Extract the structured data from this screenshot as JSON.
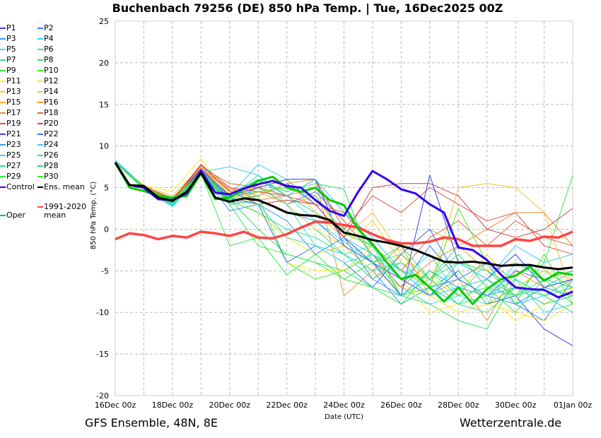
{
  "header": {
    "title": "Buchenbach 79256 (DE)  850 hPa Temp. | Tue, 16Dec2025 00Z"
  },
  "footer": {
    "left": "GFS Ensemble, 48N, 8E",
    "right": "Wetterzentrale.de"
  },
  "chart_data": {
    "type": "line",
    "title": "Buchenbach 79256 (DE)  850 hPa Temp. | Tue, 16Dec2025 00Z",
    "xlabel": "Date (UTC)",
    "ylabel": "850 hPa Temp. (°C)",
    "ylim": [
      -20,
      25
    ],
    "xlim_days": [
      0,
      16
    ],
    "yticks": [
      "-20",
      "-15",
      "-10",
      "-5",
      "0",
      "5",
      "10",
      "15",
      "20",
      "25"
    ],
    "ytick_values": [
      -20,
      -15,
      -10,
      -5,
      0,
      5,
      10,
      15,
      20,
      25
    ],
    "xticks": [
      "16Dec 00z",
      "18Dec 00z",
      "20Dec 00z",
      "22Dec 00z",
      "24Dec 00z",
      "26Dec 00z",
      "28Dec 00z",
      "30Dec 00z",
      "01Jan 00z"
    ],
    "xtick_days": [
      0,
      2,
      4,
      6,
      8,
      10,
      12,
      14,
      16
    ],
    "grid": true,
    "legend_placement": "left-outside",
    "main_step_days": 0.5,
    "member_step_days": 1,
    "members": [
      {
        "name": "P1",
        "color": "#3344ee",
        "values": [
          8,
          5,
          3.4,
          7,
          3.5,
          4,
          5.5,
          3,
          -1,
          -4,
          -6,
          -8,
          -5,
          -9,
          -8,
          -12,
          -14
        ]
      },
      {
        "name": "P2",
        "color": "#3377ff",
        "values": [
          8,
          5.2,
          3.5,
          7.2,
          4,
          4.5,
          3,
          4.5,
          1,
          -3,
          -7,
          -2,
          -6,
          -4,
          -9,
          -11,
          -6
        ]
      },
      {
        "name": "P3",
        "color": "#3399ff",
        "values": [
          8,
          5,
          3.2,
          6.8,
          3,
          3.5,
          2,
          1,
          -2,
          -5,
          -9,
          -7,
          -6,
          -8,
          -7,
          -9,
          -8
        ]
      },
      {
        "name": "P4",
        "color": "#33ccff",
        "values": [
          8.3,
          5.2,
          3.3,
          7,
          4,
          7.8,
          6,
          3,
          -1,
          -3,
          -5,
          -8,
          -7,
          -6,
          -9,
          -8,
          -10
        ]
      },
      {
        "name": "P5",
        "color": "#33ddee",
        "values": [
          8,
          5,
          2.8,
          6.7,
          3.2,
          5,
          4,
          1,
          -1.5,
          -4,
          -7,
          -9,
          -8,
          -4,
          -6,
          -10,
          -9
        ]
      },
      {
        "name": "P6",
        "color": "#33ddaa",
        "values": [
          8,
          4.8,
          2.7,
          6.5,
          3.5,
          5,
          3,
          0,
          -3,
          -6,
          -4,
          -7,
          -9,
          -6,
          -8,
          -7,
          -5
        ]
      },
      {
        "name": "P7",
        "color": "#33dd88",
        "values": [
          8,
          5.1,
          3,
          6.9,
          4.2,
          6,
          4,
          2,
          0,
          -2,
          -5,
          -6,
          -2,
          -5,
          -7,
          -8,
          -6
        ]
      },
      {
        "name": "P8",
        "color": "#33dd66",
        "values": [
          8.1,
          5,
          3.4,
          7,
          3.6,
          0,
          -3,
          -4,
          -5,
          -7,
          -8,
          -9,
          -11,
          -12,
          -6,
          -8,
          -7
        ]
      },
      {
        "name": "P9",
        "color": "#33ee44",
        "values": [
          8,
          4.9,
          3.2,
          6.6,
          3,
          -2,
          -3,
          -4,
          -6,
          -4,
          -3,
          -6,
          -4,
          -5,
          -8,
          -4,
          6.5
        ]
      },
      {
        "name": "P10",
        "color": "#44ee22",
        "values": [
          8,
          5,
          3.5,
          6.7,
          3.3,
          4,
          -4,
          -6,
          -5,
          -3,
          -8,
          -7,
          -5,
          -9,
          -7,
          -5,
          -7
        ]
      },
      {
        "name": "P11",
        "color": "#ffee22",
        "values": [
          8,
          5.3,
          4.5,
          8.5,
          4,
          3,
          -4,
          -5,
          -5,
          -2,
          -6,
          -10,
          -9,
          -8,
          -11,
          -9,
          -7
        ]
      },
      {
        "name": "P12",
        "color": "#ffdd22",
        "values": [
          8,
          5.1,
          3.6,
          7.1,
          4,
          2,
          -1,
          -3,
          -2,
          -5,
          -7,
          -8,
          -10,
          -9,
          -10,
          -11,
          -9
        ]
      },
      {
        "name": "P13",
        "color": "#ffcc33",
        "values": [
          8,
          5,
          3.5,
          7,
          3.8,
          4.5,
          3,
          0,
          -2,
          1,
          -4,
          -6,
          -8,
          -3,
          -7,
          -5,
          -6
        ]
      },
      {
        "name": "P14",
        "color": "#ffbb33",
        "values": [
          8,
          5.2,
          4,
          7.5,
          4.5,
          5,
          6,
          2,
          -1,
          2,
          -3,
          -7,
          5,
          5.5,
          5,
          2,
          -8
        ]
      },
      {
        "name": "P15",
        "color": "#ffaa33",
        "values": [
          8,
          5,
          3.6,
          7.3,
          4.3,
          5.2,
          3,
          4,
          -1,
          -6,
          -3,
          0,
          -2,
          -5,
          -4,
          -6,
          -5
        ]
      },
      {
        "name": "P16",
        "color": "#ee9933",
        "values": [
          8,
          5.1,
          3.8,
          7.1,
          4.8,
          4,
          5.5,
          6,
          -8,
          -5,
          -2,
          -8,
          -6,
          -11,
          -5,
          -7,
          -6
        ]
      },
      {
        "name": "P17",
        "color": "#ee8833",
        "values": [
          8,
          5,
          3.7,
          7.2,
          5,
          3.5,
          4,
          5,
          1,
          -3,
          -7,
          -4,
          -2,
          0,
          2,
          2,
          -2
        ]
      },
      {
        "name": "P18",
        "color": "#dd6644",
        "values": [
          8,
          5.2,
          3.6,
          7.4,
          5.5,
          5,
          4,
          3,
          2,
          -2,
          -5,
          -1,
          1,
          -2,
          1,
          -1,
          -2
        ]
      },
      {
        "name": "P19",
        "color": "#dd5544",
        "values": [
          8,
          5,
          3.5,
          7.8,
          5,
          4.5,
          4,
          6,
          0,
          4,
          2,
          5,
          3,
          1,
          2,
          -2,
          -3
        ]
      },
      {
        "name": "P20",
        "color": "#cc4444",
        "values": [
          8,
          5,
          3.4,
          7.7,
          4.6,
          3,
          3.5,
          3,
          -1,
          5,
          5.5,
          5.5,
          4,
          0,
          -1,
          0,
          2.5
        ]
      },
      {
        "name": "P21",
        "color": "#3344ee",
        "values": [
          8,
          5,
          3.3,
          7.2,
          4,
          5,
          6,
          6,
          -2,
          -4,
          -8,
          6.5,
          -4,
          -6,
          -3,
          -7,
          -6
        ]
      },
      {
        "name": "P22",
        "color": "#3377ff",
        "values": [
          8,
          5.1,
          3.4,
          7,
          3.8,
          3,
          -4,
          -2,
          -4,
          -7,
          -3,
          0,
          -6,
          -8,
          -5,
          -6,
          -7
        ]
      },
      {
        "name": "P23",
        "color": "#3399ff",
        "values": [
          8,
          5,
          3.3,
          6.8,
          2.2,
          3,
          1,
          -3,
          -1,
          -6,
          -8,
          -5,
          -7,
          -8,
          -9,
          -7,
          -8
        ]
      },
      {
        "name": "P24",
        "color": "#33ccff",
        "values": [
          8.2,
          5.1,
          3.2,
          6.9,
          7.5,
          6.5,
          4,
          6,
          2,
          -1,
          -5,
          -8,
          -4,
          -6,
          -2,
          -4,
          -3
        ]
      },
      {
        "name": "P25",
        "color": "#33ddee",
        "values": [
          8,
          4.9,
          3,
          6.6,
          3.8,
          6.5,
          3,
          -2,
          -4,
          -3,
          -6,
          -3,
          -8,
          -9,
          -4,
          -6,
          -7
        ]
      },
      {
        "name": "P26",
        "color": "#33ddaa",
        "values": [
          8,
          4.9,
          2.9,
          6.5,
          3.5,
          3,
          -1,
          -2,
          -3,
          -5,
          -4,
          -7,
          -9,
          -8,
          -6,
          -8,
          -10
        ]
      },
      {
        "name": "P27",
        "color": "#33dd88",
        "values": [
          8,
          5,
          3.1,
          6.8,
          3.4,
          2,
          0,
          -1,
          -3,
          -2,
          -8,
          -6,
          -9,
          -10,
          -7,
          -9,
          -8
        ]
      },
      {
        "name": "P28",
        "color": "#33dd66",
        "values": [
          8,
          5,
          3.3,
          6.9,
          3.7,
          5.8,
          4.5,
          5.5,
          4.8,
          -4,
          -2,
          -6,
          -3,
          -7,
          -8,
          -6,
          -5
        ]
      },
      {
        "name": "P29",
        "color": "#33ee44",
        "values": [
          8,
          4.9,
          3.3,
          6.7,
          -2,
          -1,
          -5.5,
          -3,
          -6,
          -7,
          -9,
          -5,
          -8,
          -7,
          -10,
          -6,
          -9
        ]
      },
      {
        "name": "P30",
        "color": "#44ee22",
        "values": [
          8,
          5,
          3.5,
          6.8,
          3.2,
          4.5,
          5,
          4,
          -0.5,
          -2,
          -5,
          -7,
          2.5,
          -4,
          -9,
          -3,
          -9
        ]
      }
    ],
    "control": {
      "name": "Control",
      "color": "#3300ee",
      "values": [
        8,
        5.3,
        5.0,
        3.6,
        3.5,
        4.3,
        7.0,
        4.4,
        4.2,
        4.9,
        5.4,
        5.8,
        5.2,
        5.0,
        3.5,
        2.2,
        1.6,
        4.5,
        7.0,
        6.0,
        4.8,
        4.3,
        3.0,
        2.0,
        -2.2,
        -2.5,
        -3.7,
        -5.5,
        -7.0,
        -7.2,
        -7.3,
        -8.2,
        -7.5
      ]
    },
    "ens_mean": {
      "name": "Ens. mean",
      "color": "#000000",
      "values": [
        8,
        5.3,
        5.2,
        3.8,
        3.4,
        4.5,
        6.8,
        3.8,
        3.3,
        3.7,
        3.5,
        2.8,
        2.0,
        1.7,
        1.6,
        1.1,
        -0.4,
        -0.8,
        -1.3,
        -1.6,
        -2.0,
        -2.5,
        -3.2,
        -3.9,
        -4.0,
        -3.9,
        -4.1,
        -4.4,
        -4.3,
        -4.3,
        -4.6,
        -4.8,
        -4.6
      ]
    },
    "climate": {
      "name": "1991-2020 mean",
      "color": "#ff4444",
      "values": [
        -1.2,
        -0.5,
        -0.7,
        -1.2,
        -0.8,
        -1.0,
        -0.3,
        -0.5,
        -0.8,
        -0.3,
        -1.0,
        -1.1,
        -0.6,
        0.2,
        0.9,
        0.8,
        0.5,
        0.2,
        -0.6,
        -1.3,
        -1.7,
        -1.7,
        -1.5,
        -1.0,
        -1.2,
        -2.0,
        -2.0,
        -2.0,
        -1.2,
        -1.4,
        -0.9,
        -1.0,
        -0.3
      ]
    },
    "oper": {
      "name": "Oper",
      "color": "#00cc00",
      "values": [
        8,
        5.0,
        4.6,
        4.0,
        3.8,
        4.0,
        6.7,
        3.6,
        3.8,
        4.8,
        5.8,
        6.3,
        5.0,
        4.5,
        5.0,
        3.5,
        2.9,
        0,
        -1.8,
        -4,
        -6,
        -5.5,
        -7,
        -8.7,
        -7,
        -9,
        -7.2,
        -6,
        -5.6,
        -4.5,
        -6.2,
        -5.2,
        -5.5
      ]
    }
  }
}
